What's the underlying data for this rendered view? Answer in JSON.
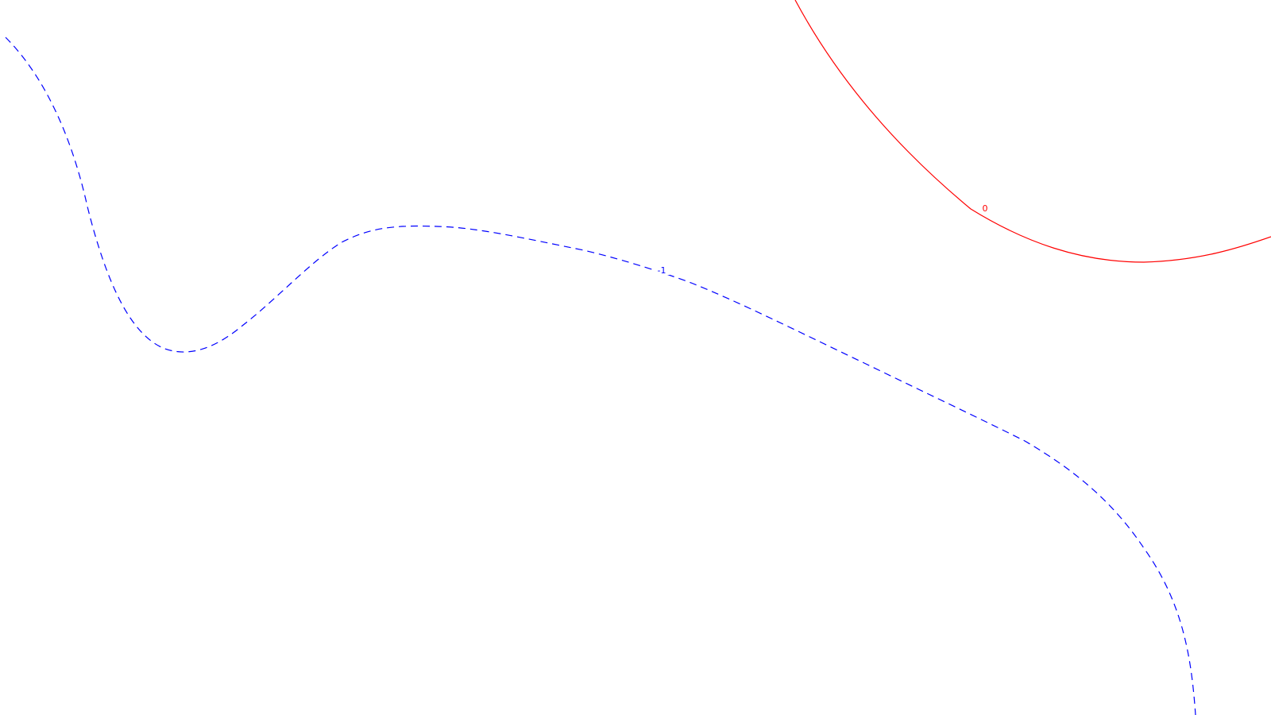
{
  "chart_data": {
    "type": "contour",
    "title": "",
    "xlabel": "",
    "ylabel": "",
    "axes_visible": false,
    "grid": false,
    "levels": [
      {
        "level_label": "0",
        "color": "#ff0000",
        "line_style": "solid"
      },
      {
        "level_label": "-1",
        "color": "#0000ff",
        "line_style": "dashed"
      }
    ]
  }
}
